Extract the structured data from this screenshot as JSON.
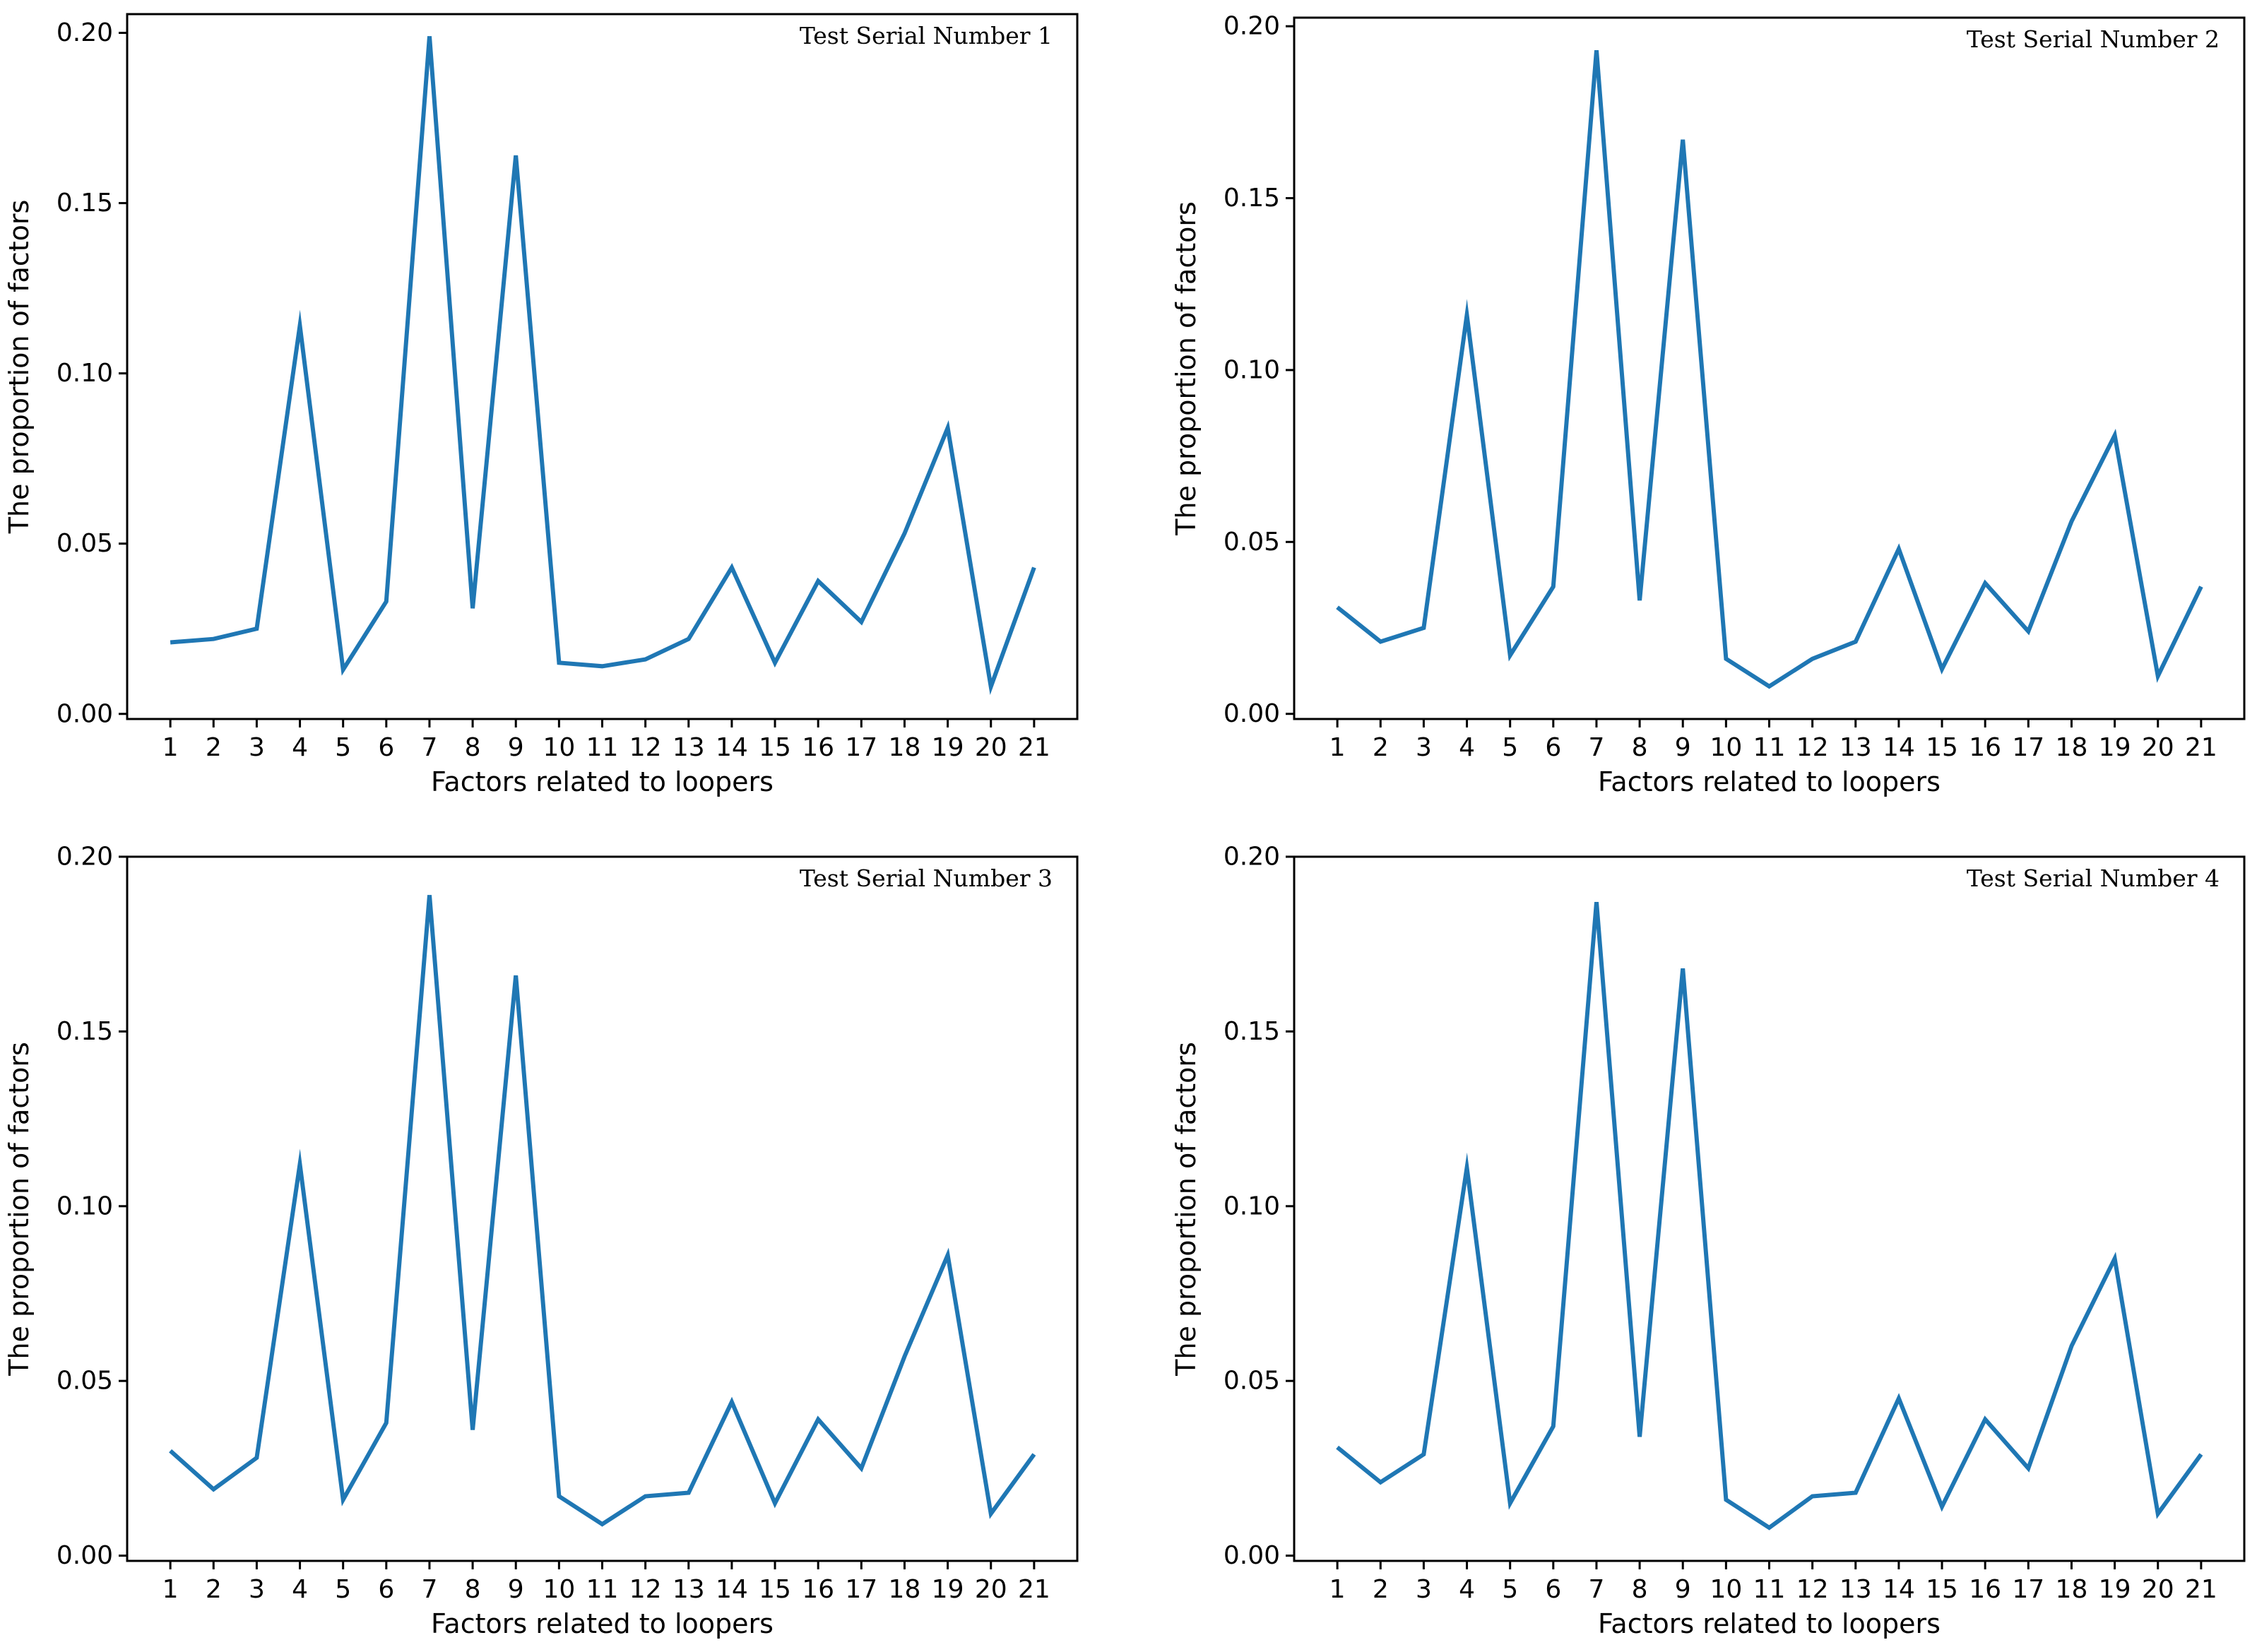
{
  "line_color": "#1f77b4",
  "chart_data": [
    {
      "type": "line",
      "title": "Test Serial Number 1",
      "xlabel": "Factors related to loopers",
      "ylabel": "The proportion of factors",
      "x": [
        1,
        2,
        3,
        4,
        5,
        6,
        7,
        8,
        9,
        10,
        11,
        12,
        13,
        14,
        15,
        16,
        17,
        18,
        19,
        20,
        21
      ],
      "x_tick_labels": [
        "1",
        "2",
        "3",
        "4",
        "5",
        "6",
        "7",
        "8",
        "9",
        "10",
        "11",
        "12",
        "13",
        "14",
        "15",
        "16",
        "17",
        "18",
        "19",
        "20",
        "21"
      ],
      "values": [
        0.021,
        0.022,
        0.025,
        0.114,
        0.013,
        0.033,
        0.199,
        0.031,
        0.164,
        0.015,
        0.014,
        0.016,
        0.022,
        0.043,
        0.015,
        0.039,
        0.027,
        0.053,
        0.084,
        0.008,
        0.043
      ],
      "ylim": [
        -0.0015,
        0.2055
      ],
      "y_ticks": [
        0.0,
        0.05,
        0.1,
        0.15,
        0.2
      ],
      "y_tick_labels": [
        "0.00",
        "0.05",
        "0.10",
        "0.15",
        "0.20"
      ],
      "grid": false,
      "legend": "none"
    },
    {
      "type": "line",
      "title": "Test Serial Number 2",
      "xlabel": "Factors related to loopers",
      "ylabel": "The proportion of factors",
      "x": [
        1,
        2,
        3,
        4,
        5,
        6,
        7,
        8,
        9,
        10,
        11,
        12,
        13,
        14,
        15,
        16,
        17,
        18,
        19,
        20,
        21
      ],
      "x_tick_labels": [
        "1",
        "2",
        "3",
        "4",
        "5",
        "6",
        "7",
        "8",
        "9",
        "10",
        "11",
        "12",
        "13",
        "14",
        "15",
        "16",
        "17",
        "18",
        "19",
        "20",
        "21"
      ],
      "values": [
        0.031,
        0.021,
        0.025,
        0.116,
        0.017,
        0.037,
        0.193,
        0.033,
        0.167,
        0.016,
        0.008,
        0.016,
        0.021,
        0.048,
        0.013,
        0.038,
        0.024,
        0.056,
        0.081,
        0.011,
        0.037
      ],
      "ylim": [
        -0.0015,
        0.2025
      ],
      "y_ticks": [
        0.0,
        0.05,
        0.1,
        0.15,
        0.2
      ],
      "y_tick_labels": [
        "0.00",
        "0.05",
        "0.10",
        "0.15",
        "0.20"
      ],
      "grid": false,
      "legend": "none"
    },
    {
      "type": "line",
      "title": "Test Serial Number 3",
      "xlabel": "Factors related to loopers",
      "ylabel": "The proportion of factors",
      "x": [
        1,
        2,
        3,
        4,
        5,
        6,
        7,
        8,
        9,
        10,
        11,
        12,
        13,
        14,
        15,
        16,
        17,
        18,
        19,
        20,
        21
      ],
      "x_tick_labels": [
        "1",
        "2",
        "3",
        "4",
        "5",
        "6",
        "7",
        "8",
        "9",
        "10",
        "11",
        "12",
        "13",
        "14",
        "15",
        "16",
        "17",
        "18",
        "19",
        "20",
        "21"
      ],
      "values": [
        0.03,
        0.019,
        0.028,
        0.112,
        0.016,
        0.038,
        0.189,
        0.036,
        0.166,
        0.017,
        0.009,
        0.017,
        0.018,
        0.044,
        0.015,
        0.039,
        0.025,
        0.057,
        0.086,
        0.012,
        0.029
      ],
      "ylim": [
        -0.0015,
        0.2
      ],
      "y_ticks": [
        0.0,
        0.05,
        0.1,
        0.15,
        0.2
      ],
      "y_tick_labels": [
        "0.00",
        "0.05",
        "0.10",
        "0.15",
        "0.20"
      ],
      "grid": false,
      "legend": "none"
    },
    {
      "type": "line",
      "title": "Test Serial Number 4",
      "xlabel": "Factors related to loopers",
      "ylabel": "The proportion of factors",
      "x": [
        1,
        2,
        3,
        4,
        5,
        6,
        7,
        8,
        9,
        10,
        11,
        12,
        13,
        14,
        15,
        16,
        17,
        18,
        19,
        20,
        21
      ],
      "x_tick_labels": [
        "1",
        "2",
        "3",
        "4",
        "5",
        "6",
        "7",
        "8",
        "9",
        "10",
        "11",
        "12",
        "13",
        "14",
        "15",
        "16",
        "17",
        "18",
        "19",
        "20",
        "21"
      ],
      "values": [
        0.031,
        0.021,
        0.029,
        0.111,
        0.015,
        0.037,
        0.187,
        0.034,
        0.168,
        0.016,
        0.008,
        0.017,
        0.018,
        0.045,
        0.014,
        0.039,
        0.025,
        0.06,
        0.085,
        0.012,
        0.029
      ],
      "ylim": [
        -0.0015,
        0.2
      ],
      "y_ticks": [
        0.0,
        0.05,
        0.1,
        0.15,
        0.2
      ],
      "y_tick_labels": [
        "0.00",
        "0.05",
        "0.10",
        "0.15",
        "0.20"
      ],
      "grid": false,
      "legend": "none"
    }
  ]
}
